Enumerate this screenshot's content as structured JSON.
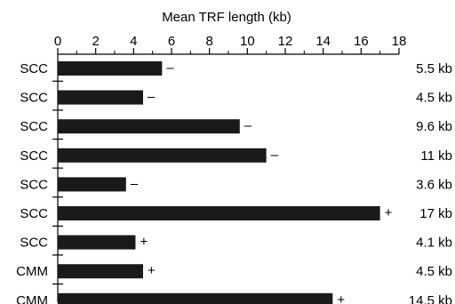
{
  "chart_data": {
    "type": "bar",
    "orientation": "horizontal",
    "title": "Mean TRF length (kb)",
    "xlabel": "Mean TRF length (kb)",
    "ylabel": "",
    "xlim": [
      0,
      18
    ],
    "xticks": [
      0,
      2,
      4,
      6,
      8,
      10,
      12,
      14,
      16,
      18
    ],
    "x_axis_position": "top",
    "grid": false,
    "categories": [
      "SCC",
      "SCC",
      "SCC",
      "SCC",
      "SCC",
      "SCC",
      "SCC",
      "CMM",
      "CMM"
    ],
    "values": [
      5.5,
      4.5,
      9.6,
      11,
      3.6,
      17,
      4.1,
      4.5,
      14.5
    ],
    "signs": [
      "–",
      "–",
      "–",
      "–",
      "–",
      "+",
      "+",
      "+",
      "+"
    ],
    "value_labels": [
      "5.5 kb",
      "4.5 kb",
      "9.6 kb",
      "11 kb",
      "3.6 kb",
      "17 kb",
      "4.1 kb",
      "4.5 kb",
      "14.5 kb"
    ],
    "bar_color": "#1a1a1a"
  }
}
